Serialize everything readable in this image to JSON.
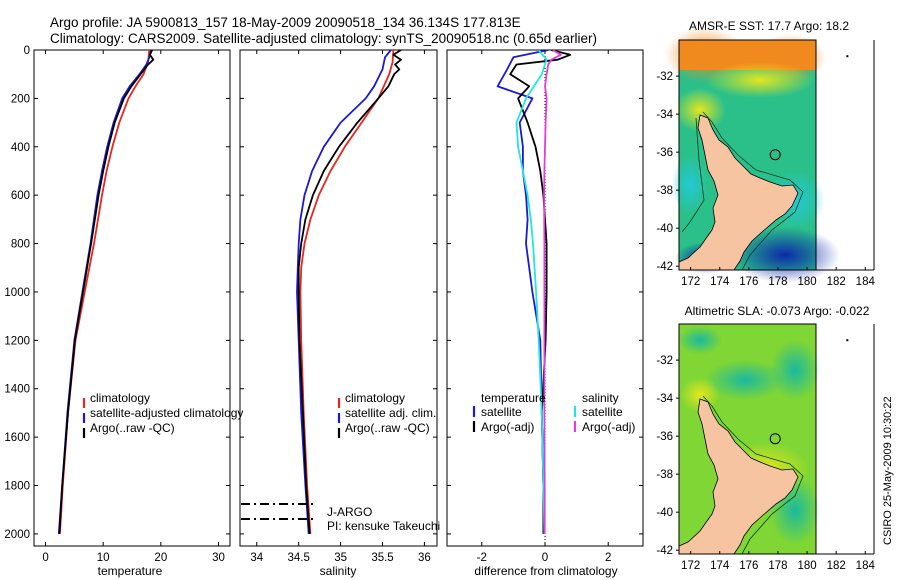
{
  "header": {
    "line1": "Argo profile: JA 5900813_157 18-May-2009 20090518_134 36.134S 177.813E",
    "line2": "Climatology: CARS2009. Satellite-adjusted climatology: synTS_20090518.nc (0.65d earlier)"
  },
  "colors": {
    "clim": "#e8251f",
    "sat": "#1a1ad6",
    "argo": "#000000",
    "sat_s": "#22e5e5",
    "argo_adj": "#e23be0"
  },
  "chart_data": [
    {
      "type": "line",
      "title": "",
      "xlabel": "temperature",
      "ylabel": "",
      "xlim": [
        -2,
        32
      ],
      "ylim": [
        2050,
        0
      ],
      "xticks": [
        "0",
        "10",
        "20",
        "30"
      ],
      "xtick_values": [
        0,
        10,
        20,
        30
      ],
      "yticks": [
        "0",
        "200",
        "400",
        "600",
        "800",
        "1000",
        "1200",
        "1400",
        "1600",
        "1800",
        "2000"
      ],
      "ytick_values": [
        0,
        200,
        400,
        600,
        800,
        1000,
        1200,
        1400,
        1600,
        1800,
        2000
      ],
      "legend": [
        "climatology",
        "satellite-adjusted climatology",
        "Argo(..raw -QC)"
      ],
      "series": [
        {
          "name": "climatology",
          "color": "clim",
          "y": [
            0,
            50,
            100,
            150,
            200,
            300,
            400,
            500,
            600,
            800,
            1000,
            1200,
            1500,
            1800,
            2000
          ],
          "x": [
            18.0,
            17.8,
            17.0,
            15.6,
            14.4,
            12.8,
            11.6,
            10.6,
            9.8,
            8.4,
            6.8,
            5.2,
            3.9,
            3.0,
            2.5
          ]
        },
        {
          "name": "satellite-adjusted climatology",
          "color": "sat",
          "y": [
            0,
            30,
            60,
            100,
            150,
            200,
            300,
            400,
            500,
            600,
            800,
            1000,
            1200,
            1500,
            1800,
            2000
          ],
          "x": [
            18.3,
            18.0,
            17.5,
            16.3,
            14.6,
            13.3,
            11.8,
            10.7,
            9.8,
            9.0,
            7.8,
            6.4,
            5.0,
            3.8,
            2.9,
            2.3
          ]
        },
        {
          "name": "Argo(..raw -QC)",
          "color": "argo",
          "y": [
            0,
            20,
            40,
            60,
            100,
            150,
            200,
            300,
            400,
            500,
            600,
            800,
            1000,
            1200,
            1500,
            1800,
            2000
          ],
          "x": [
            18.5,
            18.1,
            18.7,
            17.8,
            16.5,
            14.9,
            13.6,
            12.0,
            10.9,
            10.0,
            9.2,
            7.9,
            6.5,
            5.1,
            3.9,
            2.9,
            2.4
          ]
        }
      ]
    },
    {
      "type": "line",
      "title": "",
      "xlabel": "salinity",
      "ylabel": "",
      "xlim": [
        33.8,
        36.15
      ],
      "ylim": [
        2050,
        0
      ],
      "xticks": [
        "34",
        "34.5",
        "35",
        "35.5",
        "36"
      ],
      "xtick_values": [
        34,
        34.5,
        35,
        35.5,
        36
      ],
      "legend": [
        "climatology",
        "satellite adj. clim.",
        "Argo(..raw -QC)"
      ],
      "annotations": [
        "J-ARGO",
        "PI: kensuke Takeuchi"
      ],
      "series": [
        {
          "name": "climatology",
          "color": "clim",
          "y": [
            0,
            50,
            100,
            200,
            300,
            400,
            500,
            600,
            700,
            800,
            900,
            1000,
            1200,
            1500,
            1800,
            2000
          ],
          "x": [
            35.63,
            35.62,
            35.58,
            35.45,
            35.25,
            35.05,
            34.88,
            34.74,
            34.64,
            34.57,
            34.53,
            34.52,
            34.53,
            34.56,
            34.6,
            34.64
          ]
        },
        {
          "name": "satellite adj. clim.",
          "color": "sat",
          "y": [
            0,
            30,
            80,
            150,
            200,
            300,
            400,
            500,
            600,
            700,
            800,
            900,
            1000,
            1200,
            1500,
            1800,
            2000
          ],
          "x": [
            35.6,
            35.53,
            35.5,
            35.4,
            35.3,
            35.0,
            34.8,
            34.66,
            34.57,
            34.52,
            34.5,
            34.49,
            34.48,
            34.5,
            34.53,
            34.58,
            34.62
          ]
        },
        {
          "name": "Argo(..raw -QC)",
          "color": "argo",
          "y": [
            0,
            20,
            40,
            60,
            80,
            100,
            150,
            200,
            300,
            400,
            500,
            600,
            700,
            800,
            900,
            1000,
            1200,
            1500,
            1800,
            2000
          ],
          "x": [
            35.72,
            35.63,
            35.72,
            35.65,
            35.7,
            35.64,
            35.57,
            35.45,
            35.2,
            34.98,
            34.8,
            34.67,
            34.58,
            34.53,
            34.5,
            34.5,
            34.51,
            34.55,
            34.59,
            34.63
          ]
        }
      ]
    },
    {
      "type": "line",
      "title": "",
      "xlabel": "difference from climatology",
      "ylabel": "",
      "xlim": [
        -3.1,
        3.1
      ],
      "ylim": [
        2050,
        0
      ],
      "xticks": [
        "-2",
        "0",
        "2"
      ],
      "xtick_values": [
        -2,
        0,
        2
      ],
      "legend": [
        "temperature",
        "satellite",
        "Argo(-adj)",
        "salinity",
        "satellite",
        "Argo(-adj)"
      ],
      "series": [
        {
          "name": "temperature satellite",
          "color": "sat",
          "y": [
            0,
            30,
            80,
            150,
            200,
            300,
            400,
            500,
            600,
            700,
            800,
            900,
            1000,
            1200,
            1500,
            1800,
            2000
          ],
          "x": [
            0.1,
            -1.0,
            -1.2,
            -1.5,
            -0.4,
            -0.8,
            -0.7,
            -0.7,
            -0.6,
            -0.55,
            -0.6,
            -0.5,
            -0.4,
            -0.15,
            -0.1,
            -0.05,
            -0.05
          ]
        },
        {
          "name": "temperature Argo(-adj)",
          "color": "argo",
          "y": [
            0,
            20,
            40,
            60,
            100,
            150,
            200,
            300,
            400,
            500,
            600,
            800,
            1000,
            1200,
            1500,
            1800,
            2000
          ],
          "x": [
            0.2,
            0.8,
            0.4,
            -0.9,
            -1.1,
            -0.5,
            -0.85,
            -0.55,
            -0.3,
            -0.15,
            -0.05,
            0.05,
            0.05,
            0.02,
            -0.1,
            -0.05,
            -0.05
          ]
        },
        {
          "name": "salinity satellite",
          "color": "sat_s",
          "y": [
            0,
            40,
            100,
            200,
            300,
            400,
            500,
            600,
            700,
            800,
            1000,
            1200,
            1500,
            1800,
            2000
          ],
          "x": [
            -0.2,
            0.05,
            -0.1,
            -0.6,
            -0.9,
            -0.85,
            -0.7,
            -0.55,
            -0.45,
            -0.38,
            -0.28,
            -0.2,
            -0.1,
            -0.05,
            -0.02
          ]
        },
        {
          "name": "salinity Argo(-adj)",
          "color": "argo_adj",
          "y": [
            0,
            20,
            40,
            60,
            100,
            150,
            200,
            300,
            400,
            500,
            600,
            800,
            1000,
            1200,
            1500,
            1800,
            2000
          ],
          "x": [
            0.25,
            0.5,
            0.2,
            0.1,
            0.05,
            0.0,
            0.05,
            0.02,
            0.0,
            -0.02,
            -0.03,
            -0.02,
            -0.02,
            -0.02,
            -0.02,
            -0.01,
            -0.01
          ]
        }
      ]
    },
    {
      "type": "heatmap",
      "title": "AMSR-E SST: 17.7 Argo: 18.2",
      "xticks": [
        "172",
        "174",
        "176",
        "178",
        "180",
        "182",
        "184"
      ],
      "xtick_values": [
        172,
        174,
        176,
        178,
        180,
        182,
        184
      ],
      "yticks": [
        "-32",
        "-34",
        "-36",
        "-38",
        "-40",
        "-42"
      ],
      "ytick_values": [
        -32,
        -34,
        -36,
        -38,
        -40,
        -42
      ],
      "xlim": [
        171.2,
        184.6
      ],
      "ylim": [
        -42.2,
        -30.1
      ],
      "marker": {
        "lon": 177.813,
        "lat": -36.134
      }
    },
    {
      "type": "heatmap",
      "title": "Altimetric SLA: -0.073 Argo: -0.022",
      "xticks": [
        "172",
        "174",
        "176",
        "178",
        "180",
        "182",
        "184"
      ],
      "xtick_values": [
        172,
        174,
        176,
        178,
        180,
        182,
        184
      ],
      "yticks": [
        "-32",
        "-34",
        "-36",
        "-38",
        "-40",
        "-42"
      ],
      "ytick_values": [
        -32,
        -34,
        -36,
        -38,
        -40,
        -42
      ],
      "xlim": [
        171.2,
        184.6
      ],
      "ylim": [
        -42.2,
        -30.1
      ],
      "marker": {
        "lon": 177.813,
        "lat": -36.134
      }
    }
  ],
  "footer": {
    "stamp": "CSIRO 25-May-2009 10:30:22"
  }
}
